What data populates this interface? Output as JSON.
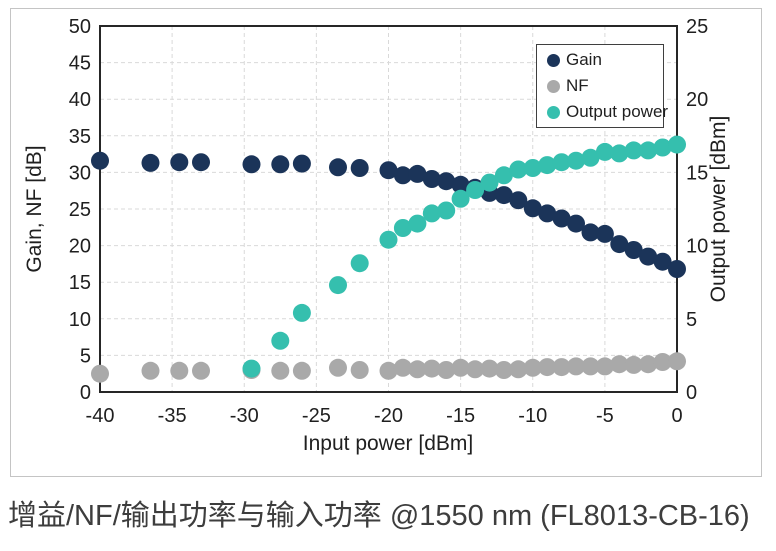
{
  "figure": {
    "caption": "增益/NF/输出功率与输入功率 @1550 nm (FL8013-CB-16)"
  },
  "chart_data": {
    "type": "scatter",
    "title": "",
    "xlabel": "Input power [dBm]",
    "ylabel_left": "Gain, NF [dB]",
    "ylabel_right": "Output power [dBm]",
    "xlim": [
      -40,
      0
    ],
    "ylim_left": [
      0,
      50
    ],
    "ylim_right": [
      0,
      25
    ],
    "x_ticks": [
      -40,
      -35,
      -30,
      -25,
      -20,
      -15,
      -10,
      -5,
      0
    ],
    "y_ticks_left": [
      0,
      5,
      10,
      15,
      20,
      25,
      30,
      35,
      40,
      45,
      50
    ],
    "y_ticks_right": [
      0,
      5,
      10,
      15,
      20,
      25
    ],
    "grid": "dashed",
    "grid_color": "#d9d9d9",
    "axis_color": "#262626",
    "legend_position": "top-right",
    "marker_radius": 9,
    "x": [
      -40,
      -36.5,
      -34.5,
      -33,
      -29.5,
      -27.5,
      -26,
      -23.5,
      -22,
      -20,
      -19,
      -18,
      -17,
      -16,
      -15,
      -14,
      -13,
      -12,
      -11,
      -10,
      -9,
      -8,
      -7,
      -6,
      -5,
      -4,
      -3,
      -2,
      -1,
      0
    ],
    "series": [
      {
        "name": "Gain",
        "axis": "left",
        "color": "#1b3459",
        "values": [
          31.6,
          31.3,
          31.4,
          31.4,
          31.1,
          31.1,
          31.2,
          30.7,
          30.6,
          30.3,
          29.6,
          29.8,
          29.1,
          28.8,
          28.3,
          27.9,
          27.2,
          26.9,
          26.2,
          25.1,
          24.4,
          23.7,
          23.0,
          21.8,
          21.6,
          20.2,
          19.4,
          18.5,
          17.8,
          16.8
        ]
      },
      {
        "name": "NF",
        "axis": "left",
        "color": "#a9a9a9",
        "values": [
          2.5,
          2.9,
          2.9,
          2.9,
          3.0,
          2.9,
          2.9,
          3.3,
          3.0,
          2.9,
          3.3,
          3.1,
          3.2,
          3.0,
          3.3,
          3.1,
          3.2,
          3.0,
          3.1,
          3.3,
          3.4,
          3.4,
          3.5,
          3.5,
          3.5,
          3.8,
          3.7,
          3.8,
          4.1,
          4.2
        ]
      },
      {
        "name": "Output power",
        "axis": "right",
        "color": "#35bfae",
        "values": [
          null,
          null,
          null,
          null,
          1.6,
          3.5,
          5.4,
          7.3,
          8.8,
          10.4,
          11.2,
          11.5,
          12.2,
          12.4,
          13.2,
          13.8,
          14.3,
          14.8,
          15.2,
          15.3,
          15.5,
          15.7,
          15.8,
          16.0,
          16.4,
          16.3,
          16.5,
          16.5,
          16.7,
          16.9
        ]
      }
    ]
  }
}
